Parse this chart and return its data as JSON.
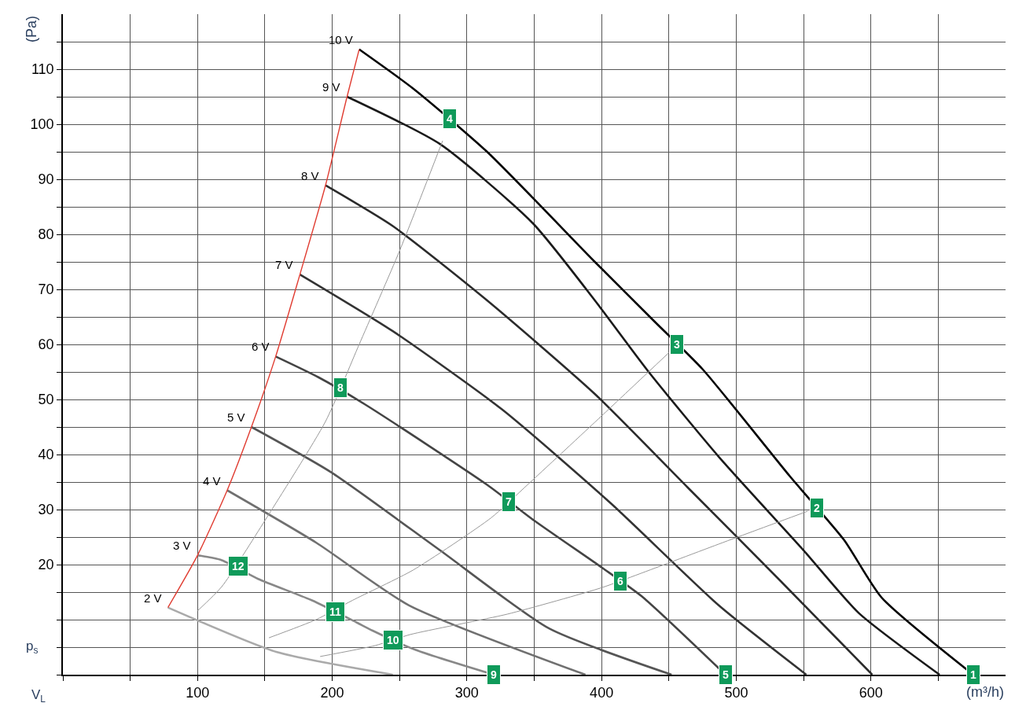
{
  "chart_data": {
    "type": "line",
    "xlabel": "(m³/h)",
    "ylabel": "(Pa)",
    "xlim": [
      0,
      700
    ],
    "ylim": [
      0,
      120
    ],
    "xticks": [
      {
        "value": 0,
        "label": null
      },
      {
        "value": 50,
        "label": null
      },
      100,
      {
        "value": 150,
        "label": null
      },
      200,
      {
        "value": 250,
        "label": null
      },
      300,
      {
        "value": 350,
        "label": null
      },
      400,
      {
        "value": 450,
        "label": null
      },
      500,
      {
        "value": 550,
        "label": null
      },
      600,
      {
        "value": 650,
        "label": null
      }
    ],
    "yticks": [
      {
        "value": 0,
        "label": null
      },
      {
        "value": 5,
        "label": null
      },
      {
        "value": 10,
        "label": null
      },
      {
        "value": 15,
        "label": null
      },
      20,
      {
        "value": 25,
        "label": null
      },
      30,
      {
        "value": 35,
        "label": null
      },
      40,
      {
        "value": 45,
        "label": null
      },
      50,
      {
        "value": 55,
        "label": null
      },
      60,
      {
        "value": 65,
        "label": null
      },
      70,
      {
        "value": 75,
        "label": null
      },
      80,
      {
        "value": 85,
        "label": null
      },
      90,
      {
        "value": 95,
        "label": null
      },
      100,
      {
        "value": 105,
        "label": null
      },
      110,
      {
        "value": 115,
        "label": null
      }
    ],
    "grid": true,
    "legend": false,
    "marker": "none",
    "line_style": "solid",
    "series": [
      {
        "name": "10 V",
        "color": "#000000",
        "x": [
          220,
          260,
          315,
          395,
          440,
          475,
          540,
          580,
          608,
          676
        ],
        "values": [
          113.6,
          106.5,
          95,
          75,
          64,
          55.5,
          36,
          24.5,
          14,
          0
        ]
      },
      {
        "name": "9 V",
        "color": "#1a1a1a",
        "x": [
          211,
          280,
          349,
          395,
          435,
          487,
          550,
          591,
          651
        ],
        "values": [
          105,
          96.4,
          82,
          68,
          55,
          39.6,
          22.6,
          11.2,
          0
        ]
      },
      {
        "name": "8 V",
        "color": "#2b2b2b",
        "x": [
          195,
          245,
          315,
          395,
          464,
          533,
          601
        ],
        "values": [
          88.9,
          81.5,
          68,
          51,
          34,
          17,
          0
        ]
      },
      {
        "name": "7 V",
        "color": "#333333",
        "x": [
          176,
          245,
          326,
          407,
          487,
          552
        ],
        "values": [
          72.7,
          62.4,
          48.2,
          31.1,
          12.6,
          0
        ]
      },
      {
        "name": "6 V",
        "color": "#444444",
        "x": [
          158,
          190,
          225,
          315,
          350,
          400,
          430,
          492
        ],
        "values": [
          57.8,
          54,
          49,
          34.5,
          28,
          19.5,
          14.2,
          0
        ]
      },
      {
        "name": "5 V",
        "color": "#555555",
        "x": [
          140,
          199,
          280,
          361,
          452
        ],
        "values": [
          45,
          36.8,
          22.6,
          8.4,
          0
        ]
      },
      {
        "name": "4 V",
        "color": "#707070",
        "x": [
          122,
          188,
          257,
          388
        ],
        "values": [
          33.5,
          24,
          12.6,
          0
        ]
      },
      {
        "name": "3 V",
        "color": "#888888",
        "x": [
          100,
          118,
          145,
          185,
          218,
          230,
          262,
          320
        ],
        "values": [
          21.7,
          20.8,
          17.4,
          13.5,
          9.5,
          8,
          4.5,
          0
        ]
      },
      {
        "name": "2 V",
        "color": "#aaaaaa",
        "x": [
          78,
          159,
          245
        ],
        "values": [
          12.2,
          4.1,
          0
        ]
      },
      {
        "color": "#e03c31",
        "x": [
          78,
          100,
          122,
          140,
          158,
          176,
          195,
          211,
          220
        ],
        "values": [
          12.2,
          21.7,
          33.5,
          45,
          57.8,
          72.7,
          88.9,
          105,
          113.6
        ]
      },
      {
        "color": "#999999",
        "x": [
          100,
          118,
          150,
          195,
          220,
          250,
          282
        ],
        "values": [
          11.6,
          16,
          28,
          46,
          60,
          77,
          97
        ]
      },
      {
        "color": "#999999",
        "x": [
          153,
          188,
          215,
          260,
          318,
          345,
          400,
          450
        ],
        "values": [
          6.7,
          10,
          13.5,
          19,
          28.5,
          34.5,
          47,
          58.5
        ]
      },
      {
        "color": "#999999",
        "x": [
          191,
          232,
          258,
          330,
          400,
          428,
          490,
          553
        ],
        "values": [
          3.3,
          5.3,
          7.3,
          11,
          15.8,
          18.3,
          24,
          29.7
        ]
      }
    ],
    "annotations": [
      {
        "text": "1",
        "x": 676,
        "y": 0
      },
      {
        "text": "2",
        "x": 560,
        "y": 30.3
      },
      {
        "text": "3",
        "x": 456,
        "y": 60
      },
      {
        "text": "4",
        "x": 287,
        "y": 101
      },
      {
        "text": "5",
        "x": 492,
        "y": 0
      },
      {
        "text": "6",
        "x": 414,
        "y": 17
      },
      {
        "text": "7",
        "x": 331,
        "y": 31.4
      },
      {
        "text": "8",
        "x": 206,
        "y": 52.1
      },
      {
        "text": "9",
        "x": 320,
        "y": 0
      },
      {
        "text": "10",
        "x": 245,
        "y": 6.3
      },
      {
        "text": "11",
        "x": 202,
        "y": 11.5
      },
      {
        "text": "12",
        "x": 130,
        "y": 19.7
      },
      "p$_{s}$",
      "V$_{L}$"
    ]
  }
}
